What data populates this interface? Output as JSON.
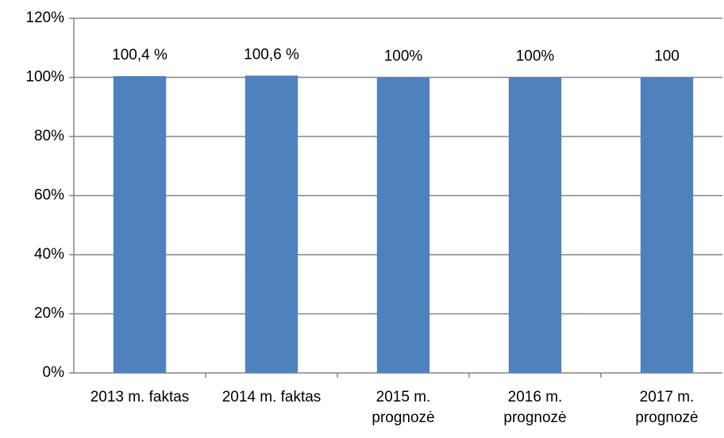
{
  "chart_data": {
    "type": "bar",
    "categories": [
      "2013 m. faktas",
      "2014 m. faktas",
      "2015 m. prognozė",
      "2016 m. prognozė",
      "2017 m. prognozė"
    ],
    "values": [
      100.4,
      100.6,
      100,
      100,
      100
    ],
    "value_labels": [
      "100,4 %",
      "100,6 %",
      "100%",
      "100%",
      "100"
    ],
    "color": "#4f81bd",
    "ylim": [
      0,
      120
    ],
    "yticks": [
      {
        "value": 0,
        "label": "0%"
      },
      {
        "value": 20,
        "label": "20%"
      },
      {
        "value": 40,
        "label": "40%"
      },
      {
        "value": 60,
        "label": "60%"
      },
      {
        "value": 80,
        "label": "80%"
      },
      {
        "value": 100,
        "label": "100%"
      },
      {
        "value": 120,
        "label": "120%"
      }
    ],
    "grid": true
  }
}
